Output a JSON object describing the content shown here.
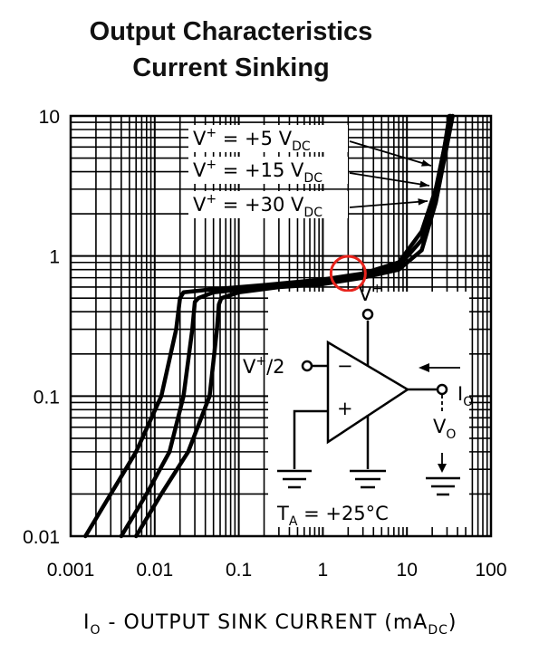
{
  "chart_data": {
    "type": "line",
    "title": "Output Characteristics",
    "subtitle": "Current Sinking",
    "xlabel": {
      "main": "I",
      "sub": "O",
      "rest": " - OUTPUT SINK CURRENT (mA",
      "unit_sub": "DC",
      "close": ")"
    },
    "x_scale": "log",
    "y_scale": "log",
    "xlim": [
      0.001,
      100
    ],
    "ylim": [
      0.01,
      10
    ],
    "x_ticks": [
      0.001,
      0.01,
      0.1,
      1,
      10,
      100
    ],
    "x_tick_labels": [
      "0.001",
      "0.01",
      "0.1",
      "1",
      "10",
      "100"
    ],
    "y_ticks": [
      0.01,
      0.1,
      1,
      10
    ],
    "y_tick_labels": [
      "0.01",
      "0.1",
      "1",
      "10"
    ],
    "grid": true,
    "series": [
      {
        "name": "V+ = +5 VDC",
        "label_prefix": "V",
        "label_sup": "+",
        "label_mid": " =  +5 V",
        "label_sub": "DC",
        "points": [
          [
            0.0015,
            0.01
          ],
          [
            0.003,
            0.02
          ],
          [
            0.006,
            0.04
          ],
          [
            0.012,
            0.1
          ],
          [
            0.018,
            0.3
          ],
          [
            0.02,
            0.5
          ],
          [
            0.022,
            0.55
          ],
          [
            0.05,
            0.58
          ],
          [
            0.2,
            0.62
          ],
          [
            1,
            0.68
          ],
          [
            3,
            0.75
          ],
          [
            8,
            0.9
          ],
          [
            15,
            1.5
          ],
          [
            22,
            3
          ],
          [
            28,
            6
          ],
          [
            32,
            10
          ]
        ]
      },
      {
        "name": "V+ = +15 VDC",
        "label_prefix": "V",
        "label_sup": "+",
        "label_mid": " =  +15 V",
        "label_sub": "DC",
        "points": [
          [
            0.004,
            0.01
          ],
          [
            0.008,
            0.02
          ],
          [
            0.015,
            0.04
          ],
          [
            0.022,
            0.1
          ],
          [
            0.028,
            0.3
          ],
          [
            0.03,
            0.47
          ],
          [
            0.033,
            0.5
          ],
          [
            0.05,
            0.55
          ],
          [
            0.2,
            0.6
          ],
          [
            1,
            0.65
          ],
          [
            3,
            0.72
          ],
          [
            8,
            0.85
          ],
          [
            15,
            1.3
          ],
          [
            22,
            2.8
          ],
          [
            28,
            6
          ],
          [
            33,
            10
          ]
        ]
      },
      {
        "name": "V+ = +30 VDC",
        "label_prefix": "V",
        "label_sup": "+",
        "label_mid": " =  +30 V",
        "label_sub": "DC",
        "points": [
          [
            0.006,
            0.01
          ],
          [
            0.012,
            0.02
          ],
          [
            0.025,
            0.04
          ],
          [
            0.045,
            0.1
          ],
          [
            0.055,
            0.3
          ],
          [
            0.058,
            0.45
          ],
          [
            0.062,
            0.5
          ],
          [
            0.1,
            0.55
          ],
          [
            0.3,
            0.6
          ],
          [
            1,
            0.63
          ],
          [
            3,
            0.7
          ],
          [
            8,
            0.8
          ],
          [
            15,
            1.1
          ],
          [
            22,
            2.4
          ],
          [
            28,
            5
          ],
          [
            35,
            10
          ]
        ]
      }
    ],
    "highlight": {
      "x": 2,
      "y": 0.75,
      "color": "#e8231c"
    },
    "inset": {
      "vplus_label": {
        "main": "V",
        "sup": "+"
      },
      "input_label": {
        "main": "V",
        "sup": "+",
        "rest": "/2"
      },
      "minus": "−",
      "plus": "+",
      "io_label": {
        "main": "I",
        "sub": "O"
      },
      "vo_label": {
        "main": "V",
        "sub": "O"
      },
      "ta_label": {
        "main": "T",
        "sub": "A",
        "rest": "  =  +25°C"
      }
    }
  },
  "colors": {
    "line": "#000000",
    "highlight": "#e8231c",
    "background": "#ffffff"
  }
}
